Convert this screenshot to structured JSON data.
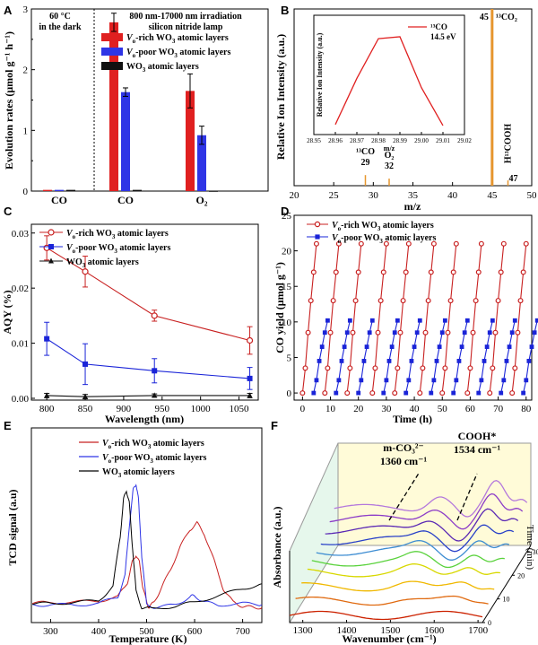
{
  "chart_data": [
    {
      "panel": "A",
      "type": "bar",
      "ylabel": "Evolution rates (μmol g⁻¹ h⁻¹)",
      "ylim": [
        0,
        3
      ],
      "yticks": [
        "0",
        "1",
        "2",
        "3"
      ],
      "groups": [
        {
          "label": "CO",
          "values": [
            0.02,
            0.02,
            0.02
          ],
          "errors": [
            0,
            0,
            0
          ]
        },
        {
          "label": "CO",
          "values": [
            2.78,
            1.63,
            0.02
          ],
          "errors": [
            0.15,
            0.07,
            0
          ]
        },
        {
          "label": "O₂",
          "values": [
            1.65,
            0.92,
            0
          ],
          "errors": [
            0.28,
            0.15,
            0
          ]
        }
      ],
      "series": [
        {
          "name": "Vo-rich WO3 atomic layers",
          "color": "#e02020"
        },
        {
          "name": "Vo-poor WO3 atomic layers",
          "color": "#2f35e6"
        },
        {
          "name": "WO3 atomic layers",
          "color": "#111111"
        }
      ],
      "notes": {
        "dark": "60 °C in the dark",
        "lamp1": "800 nm-17000 nm irradiation",
        "lamp2": "silicon nitride lamp"
      }
    },
    {
      "panel": "B",
      "type": "bar",
      "xlabel": "m/z",
      "ylabel": "Relative Ion Intensity (a.u.)",
      "xlim": [
        20,
        50
      ],
      "xticks": [
        "20",
        "25",
        "30",
        "35",
        "40",
        "45",
        "50"
      ],
      "peaks": [
        {
          "x": 29,
          "y": 0.06
        },
        {
          "x": 32,
          "y": 0.04
        },
        {
          "x": 45,
          "y": 1.0
        },
        {
          "x": 47,
          "y": 0.03
        }
      ],
      "annotations": {
        "p29a": "¹³CO",
        "p29b": "29",
        "p32a": "O₂",
        "p32b": "32",
        "p45a": "45",
        "p45b": "¹³CO₂",
        "p47a": "H¹³COOH",
        "p47b": "47"
      },
      "inset": {
        "xlabel": "m/z",
        "ylabel": "Relative Ion Intensity (a.u.)",
        "xlim": [
          28.95,
          29.02
        ],
        "xticks": [
          "28.95",
          "28.96",
          "28.97",
          "28.98",
          "28.99",
          "29.00",
          "29.01",
          "29.02"
        ],
        "x": [
          28.96,
          28.97,
          28.98,
          28.99,
          29.0,
          29.01
        ],
        "y": [
          0.05,
          0.55,
          0.98,
          1.0,
          0.45,
          0.04
        ],
        "legend": [
          "¹³CO",
          "14.5 eV"
        ],
        "color": "#e02020"
      }
    },
    {
      "panel": "C",
      "type": "line",
      "xlabel": "Wavelength (nm)",
      "ylabel": "AQY (%)",
      "xlim": [
        780,
        1075
      ],
      "ylim": [
        0,
        0.03
      ],
      "xticks": [
        "800",
        "850",
        "900",
        "950",
        "1000",
        "1050"
      ],
      "yticks": [
        "0.00",
        "0.01",
        "0.02",
        "0.03"
      ],
      "x": [
        800,
        850,
        940,
        1064
      ],
      "series": [
        {
          "name": "Vo-rich WO3 atomic layers",
          "values": [
            0.0273,
            0.023,
            0.015,
            0.0105
          ],
          "errors": [
            0.0022,
            0.0028,
            0.001,
            0.0025
          ],
          "color": "#c82020",
          "marker": "circle"
        },
        {
          "name": "Vo-poor WO3 atomic layers",
          "values": [
            0.0108,
            0.0062,
            0.005,
            0.0036
          ],
          "errors": [
            0.003,
            0.0037,
            0.0022,
            0.002
          ],
          "color": "#1a24d8",
          "marker": "square"
        },
        {
          "name": "WO3 atomic layers",
          "values": [
            0.0005,
            0.0003,
            0.0005,
            0.0005
          ],
          "errors": [
            0.0004,
            0.0004,
            0.0003,
            0.0004
          ],
          "color": "#111111",
          "marker": "triangle"
        }
      ]
    },
    {
      "panel": "D",
      "type": "line",
      "xlabel": "Time (h)",
      "ylabel": "CO yield (μmol g⁻¹)",
      "xlim": [
        -3,
        82
      ],
      "ylim": [
        -1,
        25
      ],
      "xticks": [
        "0",
        "10",
        "20",
        "30",
        "40",
        "50",
        "60",
        "70",
        "80"
      ],
      "yticks": [
        "0",
        "5",
        "10",
        "15",
        "20",
        "25"
      ],
      "cycles": [
        0,
        8,
        16,
        25,
        33,
        42,
        50,
        59,
        67,
        75
      ],
      "cycle_points_h": [
        0,
        1,
        2,
        3,
        4,
        5
      ],
      "series": [
        {
          "name": "Vo-rich WO3 atomic layers",
          "cycle_values": [
            0,
            3.5,
            8.5,
            13,
            17,
            21
          ],
          "color": "#c82020",
          "marker": "circle"
        },
        {
          "name": "Vo-poor WO3 atomic layers",
          "cycle_values": [
            0,
            1.8,
            4.5,
            6.5,
            8.5,
            10.2
          ],
          "color": "#1a24d8",
          "marker": "square"
        }
      ]
    },
    {
      "panel": "E",
      "type": "line",
      "xlabel": "Temperature (K)",
      "ylabel": "TCD signal (a.u)",
      "xlim": [
        260,
        740
      ],
      "xticks": [
        "300",
        "400",
        "500",
        "600",
        "700"
      ],
      "series": [
        {
          "name": "Vo-rich WO3 atomic layers",
          "color": "#c82020",
          "x": [
            262,
            300,
            350,
            400,
            440,
            460,
            470,
            478,
            485,
            492,
            500,
            505,
            515,
            530,
            550,
            570,
            590,
            605,
            620,
            640,
            660,
            680,
            700,
            720,
            740
          ],
          "y": [
            0.09,
            0.1,
            0.1,
            0.11,
            0.14,
            0.25,
            0.4,
            0.46,
            0.4,
            0.22,
            0.1,
            0.06,
            0.1,
            0.2,
            0.35,
            0.52,
            0.65,
            0.7,
            0.62,
            0.42,
            0.2,
            0.1,
            0.07,
            0.06,
            0.06
          ]
        },
        {
          "name": "Vo-poor WO3 atomic layers",
          "color": "#2f35e6",
          "x": [
            262,
            300,
            350,
            400,
            440,
            455,
            465,
            472,
            478,
            483,
            490,
            500,
            520,
            560,
            590,
            600,
            620,
            650,
            700,
            740
          ],
          "y": [
            0.08,
            0.08,
            0.08,
            0.09,
            0.14,
            0.3,
            0.72,
            0.95,
            1.0,
            0.88,
            0.45,
            0.08,
            0.06,
            0.08,
            0.14,
            0.15,
            0.1,
            0.08,
            0.09,
            0.08
          ]
        },
        {
          "name": "WO3 atomic layers",
          "color": "#000000",
          "x": [
            262,
            300,
            350,
            400,
            430,
            445,
            452,
            458,
            464,
            470,
            478,
            490,
            510,
            560,
            600,
            650,
            700,
            740
          ],
          "y": [
            0.09,
            0.09,
            0.1,
            0.11,
            0.22,
            0.6,
            0.88,
            0.95,
            0.85,
            0.55,
            0.18,
            0.06,
            0.05,
            0.07,
            0.1,
            0.15,
            0.2,
            0.24
          ]
        }
      ]
    },
    {
      "panel": "F",
      "type": "line",
      "xlabel": "Wavenumber (cm⁻¹)",
      "ylabel": "Absorbance (a.u.)",
      "zlabel": "Time (min)",
      "xlim": [
        1270,
        1710
      ],
      "xticks": [
        "1300",
        "1400",
        "1500",
        "1600",
        "1700"
      ],
      "ztick_labels": [
        "0",
        "10",
        "20",
        "30"
      ],
      "annotations": {
        "m1": "m-CO₃²⁻",
        "m2": "1360 cm⁻¹",
        "c1": "COOH*",
        "c2": "1534 cm⁻¹"
      },
      "traces": [
        {
          "color": "#cc2200",
          "time": 0
        },
        {
          "color": "#e06a10",
          "time": 4
        },
        {
          "color": "#f0b800",
          "time": 8
        },
        {
          "color": "#d8d800",
          "time": 12
        },
        {
          "color": "#5ad23c",
          "time": 15
        },
        {
          "color": "#3c8cd2",
          "time": 18
        },
        {
          "color": "#2840c8",
          "time": 21
        },
        {
          "color": "#5a28b4",
          "time": 24
        },
        {
          "color": "#8c3cc8",
          "time": 27
        },
        {
          "color": "#b478dc",
          "time": 30
        }
      ]
    }
  ],
  "panels": {
    "A": "A",
    "B": "B",
    "C": "C",
    "D": "D",
    "E": "E",
    "F": "F"
  },
  "legend": {
    "rich_A": "-rich WO",
    "poor_A": "-poor WO",
    "wo3": "WO",
    "atomic": " atomic layers",
    "Vo": "V",
    "o": "o",
    "three": "3"
  }
}
